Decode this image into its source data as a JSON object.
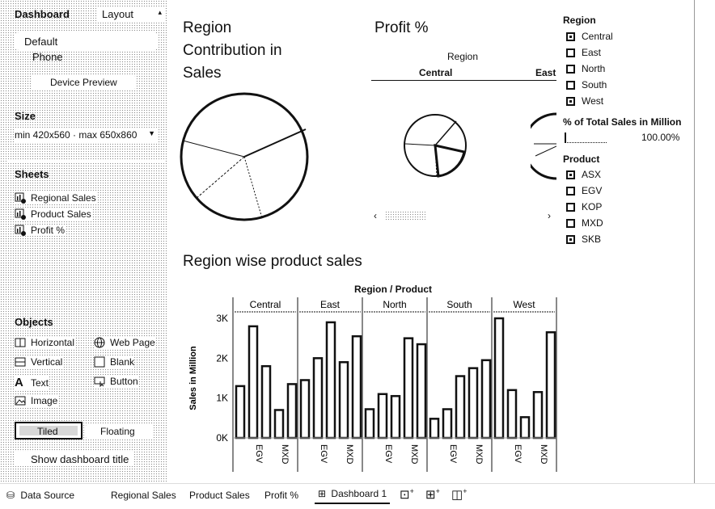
{
  "left_panel": {
    "tabs": {
      "dashboard": "Dashboard",
      "layout": "Layout"
    },
    "device": {
      "default": "Default",
      "phone": "Phone",
      "preview_button": "Device Preview"
    },
    "size": {
      "header": "Size",
      "value": "min 420x560 · max 650x860"
    },
    "sheets": {
      "header": "Sheets",
      "items": [
        "Regional Sales",
        "Product Sales",
        "Profit %"
      ]
    },
    "objects": {
      "header": "Objects",
      "horizontal": "Horizontal",
      "web_page": "Web Page",
      "vertical": "Vertical",
      "blank": "Blank",
      "text": "Text",
      "button": "Button",
      "image": "Image",
      "tiled": "Tiled",
      "floating": "Floating"
    },
    "show_title": "Show dashboard title"
  },
  "dashboard": {
    "pie_title": [
      "Region",
      "Contribution in",
      "Sales"
    ],
    "profit_title": "Profit %",
    "profit_header": "Region",
    "profit_cols": [
      "Central",
      "East"
    ],
    "legend_region": {
      "title": "Region",
      "items": [
        "Central",
        "East",
        "North",
        "South",
        "West"
      ]
    },
    "legend_pct": {
      "title": "% of Total Sales in Million",
      "value": "100.00%"
    },
    "legend_product": {
      "title": "Product",
      "items": [
        "ASX",
        "EGV",
        "KOP",
        "MXD",
        "SKB"
      ]
    },
    "bar_title": "Region wise product sales"
  },
  "chart_data": {
    "type": "bar",
    "title": "Region / Product",
    "ylabel": "Sales in Million",
    "ylim": [
      0,
      3000
    ],
    "yticks": [
      "0K",
      "1K",
      "2K",
      "3K"
    ],
    "groups": [
      "Central",
      "East",
      "North",
      "South",
      "West"
    ],
    "categories": [
      "ASX",
      "EGV",
      "KOP",
      "MXD",
      "SKB"
    ],
    "visible_x_labels": [
      "EGV",
      "MXD"
    ],
    "series": [
      {
        "values": [
          1300,
          2800,
          1800,
          700,
          1350
        ]
      },
      {
        "values": [
          1450,
          2000,
          2900,
          1900,
          2550
        ]
      },
      {
        "values": [
          720,
          1100,
          1050,
          2500,
          2350
        ]
      },
      {
        "values": [
          480,
          720,
          1550,
          1750,
          1950
        ]
      },
      {
        "values": [
          3000,
          1200,
          520,
          1150,
          2650
        ]
      }
    ]
  },
  "bottom_tabs": {
    "data_source": "Data Source",
    "tabs": [
      "Regional Sales",
      "Product Sales",
      "Profit %"
    ],
    "active": "Dashboard 1"
  }
}
